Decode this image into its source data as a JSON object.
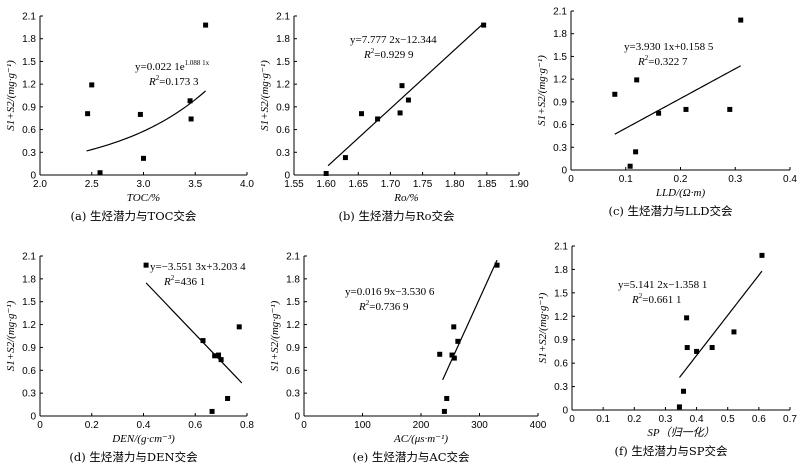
{
  "chart_data": [
    {
      "id": "a",
      "type": "scatter",
      "caption": "(a)  生烃潜力与TOC交会",
      "xlabel": "TOC/%",
      "ylabel": "S1+S2/(mg·g⁻¹)",
      "xlim": [
        2.0,
        4.0
      ],
      "ylim": [
        0,
        2.1
      ],
      "xticks": [
        "2.0",
        "2.5",
        "3.0",
        "3.5",
        "4.0"
      ],
      "yticks": [
        "0",
        "0.3",
        "0.6",
        "0.9",
        "1.2",
        "1.5",
        "1.8",
        "2.1"
      ],
      "points": [
        [
          2.46,
          0.81
        ],
        [
          2.5,
          1.19
        ],
        [
          2.58,
          0.03
        ],
        [
          2.97,
          0.8
        ],
        [
          3.0,
          0.22
        ],
        [
          3.45,
          0.98
        ],
        [
          3.46,
          0.74
        ],
        [
          3.6,
          1.98
        ]
      ],
      "trend": {
        "kind": "exp",
        "a": 0.0221,
        "b": 1.0881,
        "x0": 2.45,
        "x1": 3.6
      },
      "equation": "y=0.022 1e1.088 1x",
      "r2": "R2=0.173 3"
    },
    {
      "id": "b",
      "type": "scatter",
      "caption": "(b)  生烃潜力与Ro交会",
      "xlabel": "Ro/%",
      "ylabel": "S1+S2/(mg·g⁻¹)",
      "xlim": [
        1.55,
        1.9
      ],
      "ylim": [
        0,
        2.1
      ],
      "xticks": [
        "1.55",
        "1.60",
        "1.65",
        "1.70",
        "1.75",
        "1.80",
        "1.85",
        "1.90"
      ],
      "yticks": [
        "0",
        "0.3",
        "0.6",
        "0.9",
        "1.2",
        "1.5",
        "1.8",
        "2.1"
      ],
      "points": [
        [
          1.6,
          0.02
        ],
        [
          1.63,
          0.23
        ],
        [
          1.655,
          0.81
        ],
        [
          1.68,
          0.74
        ],
        [
          1.715,
          0.82
        ],
        [
          1.718,
          1.18
        ],
        [
          1.728,
          0.99
        ],
        [
          1.845,
          1.98
        ]
      ],
      "trend": {
        "kind": "lin",
        "m": 7.7772,
        "c": -12.344,
        "x0": 1.603,
        "x1": 1.845
      },
      "equation": "y=7.777 2x−12.344",
      "r2": "R2=0.929 9"
    },
    {
      "id": "c",
      "type": "scatter",
      "caption": "(c)  生烃潜力与LLD交会",
      "xlabel": "LLD/(Ω·m)",
      "ylabel": "S1+S2/(mg·g⁻¹)",
      "xlim": [
        0,
        0.4
      ],
      "ylim": [
        0,
        2.1
      ],
      "xticks": [
        "0",
        "0.1",
        "0.2",
        "0.3",
        "0.4"
      ],
      "yticks": [
        "0",
        "0.3",
        "0.6",
        "0.9",
        "1.2",
        "1.5",
        "1.8",
        "2.1"
      ],
      "points": [
        [
          0.08,
          1.0
        ],
        [
          0.108,
          0.05
        ],
        [
          0.118,
          0.24
        ],
        [
          0.12,
          1.19
        ],
        [
          0.16,
          0.75
        ],
        [
          0.21,
          0.8
        ],
        [
          0.29,
          0.8
        ],
        [
          0.31,
          1.98
        ]
      ],
      "trend": {
        "kind": "lin",
        "m": 3.9301,
        "c": 0.1585,
        "x0": 0.08,
        "x1": 0.31
      },
      "equation": "y=3.930 1x+0.158 5",
      "r2": "R2=0.322 7"
    },
    {
      "id": "d",
      "type": "scatter",
      "caption": "(d)  生烃潜力与DEN交会",
      "xlabel": "DEN/(g·cm⁻³)",
      "ylabel": "S1+S2/(mg·g⁻¹)",
      "xlim": [
        0,
        0.8
      ],
      "ylim": [
        0,
        2.1
      ],
      "xticks": [
        "0",
        "0.2",
        "0.4",
        "0.6",
        "0.8"
      ],
      "yticks": [
        "0",
        "0.3",
        "0.6",
        "0.9",
        "1.2",
        "1.5",
        "1.8",
        "2.1"
      ],
      "points": [
        [
          0.41,
          1.98
        ],
        [
          0.63,
          0.99
        ],
        [
          0.665,
          0.06
        ],
        [
          0.675,
          0.79
        ],
        [
          0.69,
          0.8
        ],
        [
          0.7,
          0.74
        ],
        [
          0.725,
          0.23
        ],
        [
          0.77,
          1.17
        ]
      ],
      "trend": {
        "kind": "lin",
        "m": -3.5513,
        "c": 3.2034,
        "x0": 0.41,
        "x1": 0.78
      },
      "equation": "y=−3.551 3x+3.203 4",
      "r2": "R2=436 1"
    },
    {
      "id": "e",
      "type": "scatter",
      "caption": "(e)  生烃潜力与AC交会",
      "xlabel": "AC/(μs·m⁻¹)",
      "ylabel": "S1+S2/(mg·g⁻¹)",
      "xlim": [
        0,
        400
      ],
      "ylim": [
        0,
        2.1
      ],
      "xticks": [
        "0",
        "100",
        "200",
        "300",
        "400"
      ],
      "yticks": [
        "0",
        "0.3",
        "0.6",
        "0.9",
        "1.2",
        "1.5",
        "1.8",
        "2.1"
      ],
      "points": [
        [
          232,
          0.81
        ],
        [
          240,
          0.06
        ],
        [
          244,
          0.23
        ],
        [
          253,
          0.8
        ],
        [
          256,
          1.17
        ],
        [
          257,
          0.76
        ],
        [
          263,
          0.98
        ],
        [
          330,
          1.98
        ]
      ],
      "trend": {
        "kind": "lin",
        "m": 0.0169,
        "c": -3.5306,
        "x0": 237,
        "x1": 330
      },
      "equation": "y=0.016 9x−3.530 6",
      "r2": "R2=0.736 9"
    },
    {
      "id": "f",
      "type": "scatter",
      "caption": "(f)  生烃潜力与SP交会",
      "xlabel": "SP（归一化）",
      "ylabel": "S1+S2/(mg·g⁻¹)",
      "xlim": [
        0,
        0.7
      ],
      "ylim": [
        0,
        2.1
      ],
      "xticks": [
        "0",
        "0.1",
        "0.2",
        "0.3",
        "0.4",
        "0.5",
        "0.6",
        "0.7"
      ],
      "yticks": [
        "0",
        "0.3",
        "0.6",
        "0.9",
        "1.2",
        "1.5",
        "1.8",
        "2.1"
      ],
      "points": [
        [
          0.345,
          0.04
        ],
        [
          0.358,
          0.24
        ],
        [
          0.368,
          1.18
        ],
        [
          0.37,
          0.8
        ],
        [
          0.4,
          0.75
        ],
        [
          0.45,
          0.8
        ],
        [
          0.52,
          1.0
        ],
        [
          0.61,
          1.98
        ]
      ],
      "trend": {
        "kind": "lin",
        "m": 5.1412,
        "c": -1.3581,
        "x0": 0.345,
        "x1": 0.61
      },
      "equation": "y=5.141 2x−1.358 1",
      "r2": "R2=0.661 1"
    }
  ]
}
